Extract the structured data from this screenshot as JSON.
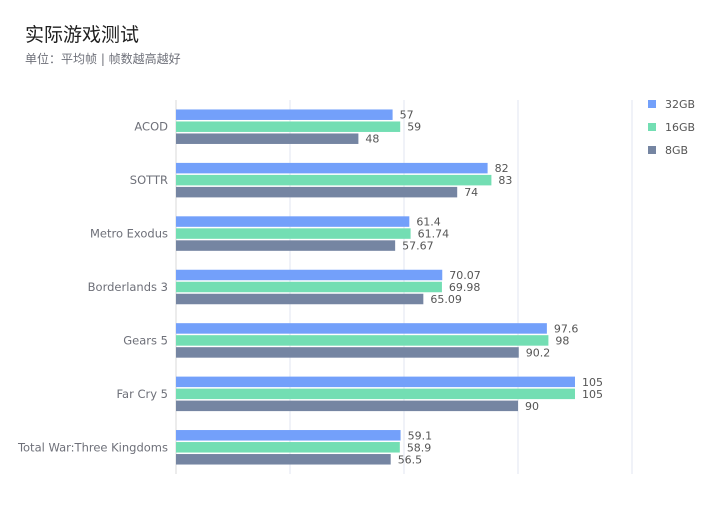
{
  "chart_data": {
    "type": "bar",
    "orientation": "horizontal",
    "title": "实际游戏测试",
    "subtitle": "单位：平均帧 | 帧数越高越好",
    "categories": [
      "ACOD",
      "SOTTR",
      "Metro Exodus",
      "Borderlands 3",
      "Gears 5",
      "Far Cry 5",
      "Total War:Three Kingdoms"
    ],
    "series": [
      {
        "name": "32GB",
        "color": "#73a0fa",
        "values": [
          57,
          82,
          61.4,
          70.07,
          97.6,
          105,
          59.1
        ],
        "labels": [
          "57",
          "82",
          "61.4",
          "70.07",
          "97.6",
          "105",
          "59.1"
        ]
      },
      {
        "name": "16GB",
        "color": "#73deb3",
        "values": [
          59,
          83,
          61.74,
          69.98,
          98,
          105,
          58.9
        ],
        "labels": [
          "59",
          "83",
          "61.74",
          "69.98",
          "98",
          "105",
          "58.9"
        ]
      },
      {
        "name": "8GB",
        "color": "#7585a2",
        "values": [
          48,
          74,
          57.67,
          65.09,
          90.2,
          90,
          56.5
        ],
        "labels": [
          "48",
          "74",
          "57.67",
          "65.09",
          "90.2",
          "90",
          "56.5"
        ]
      }
    ],
    "xlim": [
      0,
      120
    ],
    "grid": true,
    "legend_position": "top-right"
  }
}
